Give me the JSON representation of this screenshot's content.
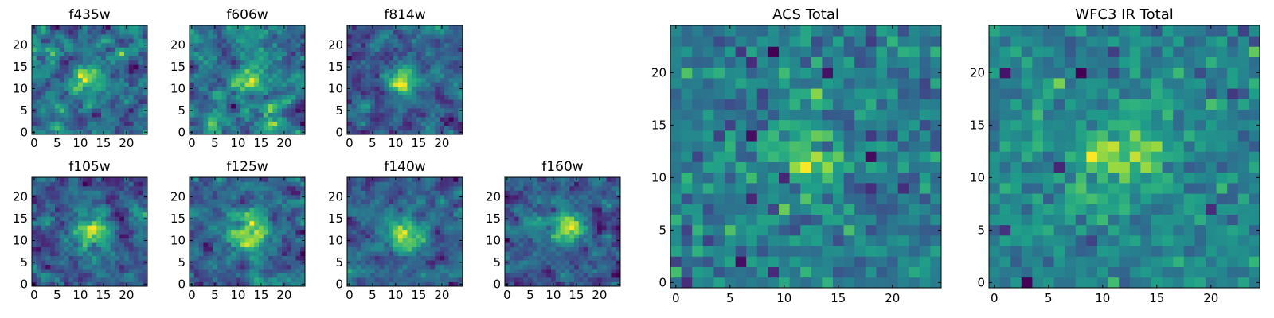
{
  "figure": {
    "type": "image-grid",
    "colormap": "viridis"
  },
  "chart_data": [
    {
      "type": "heatmap",
      "title": "f435w",
      "size": 25,
      "xlim": [
        0,
        25
      ],
      "ylim": [
        0,
        25
      ],
      "xticks": [
        0,
        5,
        10,
        15,
        20
      ],
      "yticks": [
        0,
        5,
        10,
        15,
        20
      ],
      "center": [
        12,
        12
      ],
      "peak_sigma": 2.0,
      "noise": 0.22,
      "base": 0.58,
      "blocky": false
    },
    {
      "type": "heatmap",
      "title": "f606w",
      "size": 25,
      "xlim": [
        0,
        25
      ],
      "ylim": [
        0,
        25
      ],
      "xticks": [
        0,
        5,
        10,
        15,
        20
      ],
      "yticks": [
        0,
        5,
        10,
        15,
        20
      ],
      "center": [
        12,
        12
      ],
      "peak_sigma": 2.0,
      "noise": 0.2,
      "base": 0.5,
      "blocky": false
    },
    {
      "type": "heatmap",
      "title": "f814w",
      "size": 25,
      "xlim": [
        0,
        25
      ],
      "ylim": [
        0,
        25
      ],
      "xticks": [
        0,
        5,
        10,
        15,
        20
      ],
      "yticks": [
        0,
        5,
        10,
        15,
        20
      ],
      "center": [
        12,
        12
      ],
      "peak_sigma": 2.2,
      "noise": 0.2,
      "base": 0.55,
      "blocky": false
    },
    {
      "type": "heatmap",
      "title": "f105w",
      "size": 25,
      "xlim": [
        0,
        25
      ],
      "ylim": [
        0,
        25
      ],
      "xticks": [
        0,
        5,
        10,
        15,
        20
      ],
      "yticks": [
        0,
        5,
        10,
        15,
        20
      ],
      "center": [
        12,
        12
      ],
      "peak_sigma": 3.0,
      "noise": 0.18,
      "base": 0.55,
      "blocky": false
    },
    {
      "type": "heatmap",
      "title": "f125w",
      "size": 25,
      "xlim": [
        0,
        25
      ],
      "ylim": [
        0,
        25
      ],
      "xticks": [
        0,
        5,
        10,
        15,
        20
      ],
      "yticks": [
        0,
        5,
        10,
        15,
        20
      ],
      "center": [
        12,
        12
      ],
      "peak_sigma": 3.0,
      "noise": 0.18,
      "base": 0.6,
      "blocky": false
    },
    {
      "type": "heatmap",
      "title": "f140w",
      "size": 25,
      "xlim": [
        0,
        25
      ],
      "ylim": [
        0,
        25
      ],
      "xticks": [
        0,
        5,
        10,
        15,
        20
      ],
      "yticks": [
        0,
        5,
        10,
        15,
        20
      ],
      "center": [
        12,
        12
      ],
      "peak_sigma": 3.0,
      "noise": 0.18,
      "base": 0.58,
      "blocky": false
    },
    {
      "type": "heatmap",
      "title": "f160w",
      "size": 25,
      "xlim": [
        0,
        25
      ],
      "ylim": [
        0,
        25
      ],
      "xticks": [
        0,
        5,
        10,
        15,
        20
      ],
      "yticks": [
        0,
        5,
        10,
        15,
        20
      ],
      "center": [
        13,
        13
      ],
      "peak_sigma": 3.0,
      "noise": 0.18,
      "base": 0.45,
      "blocky": false
    },
    {
      "type": "heatmap",
      "title": "ACS Total",
      "size": 25,
      "xlim": [
        0,
        25
      ],
      "ylim": [
        0,
        25
      ],
      "xticks": [
        0,
        5,
        10,
        15,
        20
      ],
      "yticks": [
        0,
        5,
        10,
        15,
        20
      ],
      "center": [
        12,
        12
      ],
      "peak_sigma": 2.2,
      "noise": 0.16,
      "base": 0.5,
      "blocky": true
    },
    {
      "type": "heatmap",
      "title": "WFC3 IR Total",
      "size": 25,
      "xlim": [
        0,
        25
      ],
      "ylim": [
        0,
        25
      ],
      "xticks": [
        0,
        5,
        10,
        15,
        20
      ],
      "yticks": [
        0,
        5,
        10,
        15,
        20
      ],
      "center": [
        12,
        12
      ],
      "peak_sigma": 3.0,
      "noise": 0.12,
      "base": 0.42,
      "blocky": true
    }
  ]
}
